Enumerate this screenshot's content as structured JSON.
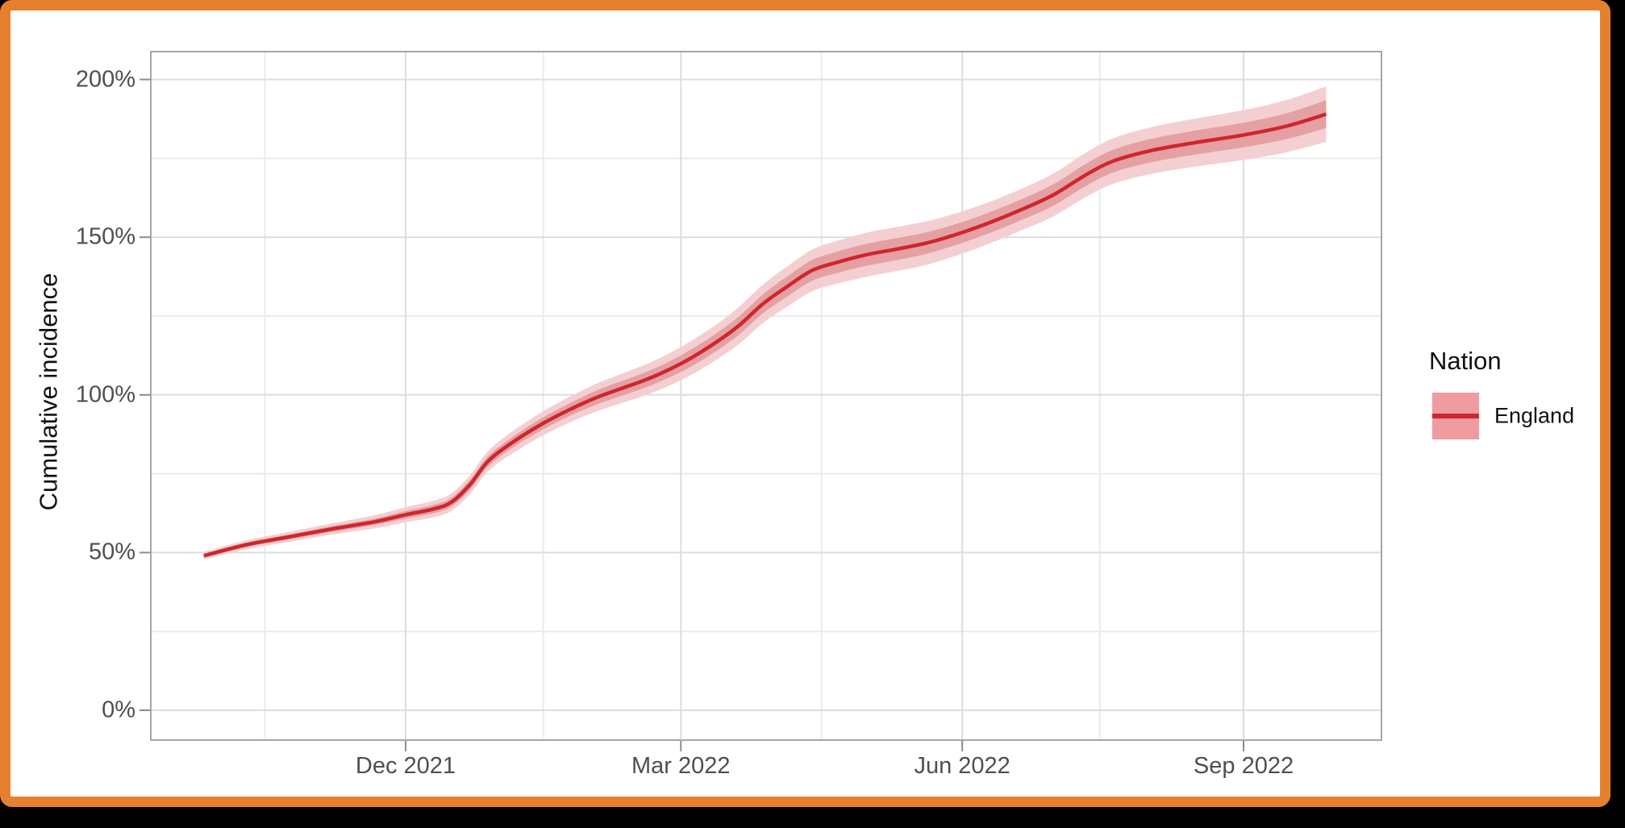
{
  "frame": {
    "background": "#000000",
    "card_fill": "#FFFFFF",
    "card_border_color": "#E5812E"
  },
  "legend": {
    "title": "Nation",
    "position": "right",
    "items": [
      {
        "label": "England",
        "line_color": "#CE262D",
        "fill_color": "#F09B9F"
      }
    ]
  },
  "colors": {
    "grid_major": "#DDDDDD",
    "grid_minor": "#EBEBEB",
    "panel_border": "#A6A6A6",
    "tick_mark": "#8C8C8C",
    "tick_label": "#4F4F4F",
    "axis_title": "#111111"
  },
  "chart_data": {
    "type": "line",
    "title": "",
    "xlabel": "",
    "ylabel": "Cumulative incidence",
    "grid": true,
    "legend_position": "right",
    "ylim": [
      -9.5,
      209
    ],
    "xlim": [
      "2021-09-09",
      "2022-10-16"
    ],
    "y_ticks": [
      {
        "value": 0,
        "label": "0%"
      },
      {
        "value": 50,
        "label": "50%"
      },
      {
        "value": 100,
        "label": "100%"
      },
      {
        "value": 150,
        "label": "150%"
      },
      {
        "value": 200,
        "label": "200%"
      }
    ],
    "y_minor_ticks": [
      25,
      75,
      125,
      175
    ],
    "x_ticks": [
      {
        "date": "2021-12-01",
        "label": "Dec 2021"
      },
      {
        "date": "2022-03-01",
        "label": "Mar 2022"
      },
      {
        "date": "2022-06-01",
        "label": "Jun 2022"
      },
      {
        "date": "2022-09-01",
        "label": "Sep 2022"
      }
    ],
    "x_minor_ticks": [
      "2021-10-16",
      "2022-01-15",
      "2022-04-16",
      "2022-07-16"
    ],
    "series": [
      {
        "name": "England",
        "color": "#CE262D",
        "band_inner_color": "#E5A0A3",
        "band_outer_color": "#F4CFD1",
        "points": [
          {
            "date": "2021-09-26",
            "value": 49.0,
            "outer": 1.2,
            "inner": 0.6
          },
          {
            "date": "2021-10-10",
            "value": 52.5,
            "outer": 1.4,
            "inner": 0.7
          },
          {
            "date": "2021-10-24",
            "value": 55.0,
            "outer": 1.6,
            "inner": 0.8
          },
          {
            "date": "2021-11-07",
            "value": 57.5,
            "outer": 1.8,
            "inner": 0.9
          },
          {
            "date": "2021-11-21",
            "value": 59.8,
            "outer": 2.1,
            "inner": 1.0
          },
          {
            "date": "2021-12-01",
            "value": 62.0,
            "outer": 2.4,
            "inner": 1.2
          },
          {
            "date": "2021-12-10",
            "value": 63.8,
            "outer": 2.6,
            "inner": 1.3
          },
          {
            "date": "2021-12-16",
            "value": 66.0,
            "outer": 2.8,
            "inner": 1.4
          },
          {
            "date": "2021-12-22",
            "value": 71.5,
            "outer": 3.0,
            "inner": 1.5
          },
          {
            "date": "2021-12-28",
            "value": 79.0,
            "outer": 3.2,
            "inner": 1.6
          },
          {
            "date": "2022-01-05",
            "value": 85.0,
            "outer": 3.5,
            "inner": 1.7
          },
          {
            "date": "2022-01-15",
            "value": 91.0,
            "outer": 3.8,
            "inner": 1.9
          },
          {
            "date": "2022-01-24",
            "value": 95.5,
            "outer": 4.1,
            "inner": 2.0
          },
          {
            "date": "2022-02-01",
            "value": 99.0,
            "outer": 4.4,
            "inner": 2.2
          },
          {
            "date": "2022-02-08",
            "value": 101.5,
            "outer": 4.6,
            "inner": 2.3
          },
          {
            "date": "2022-02-17",
            "value": 104.6,
            "outer": 4.9,
            "inner": 2.4
          },
          {
            "date": "2022-02-24",
            "value": 107.5,
            "outer": 5.1,
            "inner": 2.5
          },
          {
            "date": "2022-03-04",
            "value": 111.5,
            "outer": 5.4,
            "inner": 2.7
          },
          {
            "date": "2022-03-13",
            "value": 117.0,
            "outer": 5.6,
            "inner": 2.8
          },
          {
            "date": "2022-03-20",
            "value": 122.0,
            "outer": 5.9,
            "inner": 2.9
          },
          {
            "date": "2022-03-28",
            "value": 129.0,
            "outer": 6.1,
            "inner": 3.0
          },
          {
            "date": "2022-04-05",
            "value": 134.5,
            "outer": 6.4,
            "inner": 3.2
          },
          {
            "date": "2022-04-13",
            "value": 139.5,
            "outer": 6.6,
            "inner": 3.3
          },
          {
            "date": "2022-04-21",
            "value": 142.0,
            "outer": 6.8,
            "inner": 3.4
          },
          {
            "date": "2022-05-01",
            "value": 144.5,
            "outer": 7.0,
            "inner": 3.5
          },
          {
            "date": "2022-05-11",
            "value": 146.3,
            "outer": 7.0,
            "inner": 3.5
          },
          {
            "date": "2022-05-21",
            "value": 148.3,
            "outer": 6.9,
            "inner": 3.4
          },
          {
            "date": "2022-06-01",
            "value": 151.5,
            "outer": 6.7,
            "inner": 3.3
          },
          {
            "date": "2022-06-11",
            "value": 155.0,
            "outer": 6.6,
            "inner": 3.3
          },
          {
            "date": "2022-06-21",
            "value": 159.0,
            "outer": 6.6,
            "inner": 3.3
          },
          {
            "date": "2022-07-01",
            "value": 163.5,
            "outer": 6.8,
            "inner": 3.4
          },
          {
            "date": "2022-07-11",
            "value": 169.5,
            "outer": 7.0,
            "inner": 3.5
          },
          {
            "date": "2022-07-20",
            "value": 174.0,
            "outer": 7.2,
            "inner": 3.6
          },
          {
            "date": "2022-08-01",
            "value": 177.3,
            "outer": 7.4,
            "inner": 3.7
          },
          {
            "date": "2022-08-15",
            "value": 179.8,
            "outer": 7.6,
            "inner": 3.8
          },
          {
            "date": "2022-09-01",
            "value": 182.4,
            "outer": 7.9,
            "inner": 3.9
          },
          {
            "date": "2022-09-15",
            "value": 185.2,
            "outer": 8.3,
            "inner": 4.1
          },
          {
            "date": "2022-09-28",
            "value": 189.0,
            "outer": 8.8,
            "inner": 4.4
          }
        ]
      }
    ]
  }
}
